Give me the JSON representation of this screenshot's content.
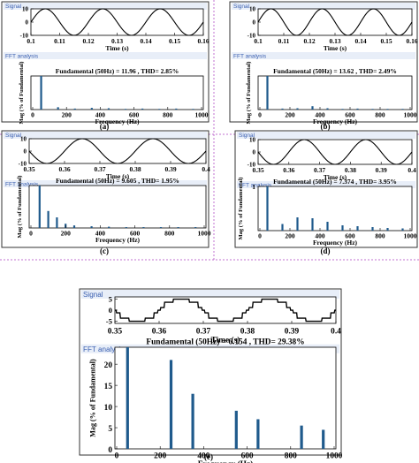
{
  "chart_data": [
    {
      "type": "composite",
      "panel_label": "(a)",
      "signal": {
        "title": "Signal",
        "xlabel": "Time (s)",
        "xlim": [
          0.1,
          0.16
        ],
        "ylim": [
          -10,
          10
        ],
        "yticks": [
          "10",
          "0",
          "-10"
        ],
        "xticks": [
          "0.1",
          "0.11",
          "0.12",
          "0.13",
          "0.14",
          "0.15",
          "0.16"
        ],
        "amplitude": 10,
        "frequency_hz": 50,
        "wave": "sine"
      },
      "fft": {
        "title": "FFT analysis",
        "heading": "Fundamental (50Hz) = 11.96 , THD= 2.85%",
        "xlabel": "Frequency (Hz)",
        "ylabel": "Mag (% of Fundamental)",
        "xticks": [
          "0",
          "200",
          "400",
          "600",
          "800",
          "1000"
        ],
        "yticks": [],
        "xlim": [
          0,
          1000
        ],
        "ylim": [
          0,
          100
        ],
        "x": [
          50,
          150,
          250,
          350,
          450,
          550,
          650,
          750,
          850,
          950
        ],
        "values": [
          100,
          7,
          3,
          5,
          4,
          2,
          3,
          2,
          3,
          2
        ]
      }
    },
    {
      "type": "composite",
      "panel_label": "(b)",
      "signal": {
        "title": "Signal",
        "xlabel": "Time (s)",
        "xlim": [
          0.1,
          0.16
        ],
        "ylim": [
          -10,
          10
        ],
        "yticks": [
          "10",
          "0",
          "-10"
        ],
        "xticks": [
          "0.1",
          "0.11",
          "0.12",
          "0.13",
          "0.14",
          "0.15",
          "0.16"
        ],
        "amplitude": 10,
        "frequency_hz": 50,
        "wave": "sine"
      },
      "fft": {
        "title": "FFT analysis",
        "heading": "Fundamental (50Hz) = 13.62 , THD= 2.49%",
        "xlabel": "Frequency (Hz)",
        "ylabel": "Mag (% of Fundamental)",
        "xticks": [
          "0",
          "200",
          "400",
          "600",
          "800",
          "1000"
        ],
        "yticks": [],
        "xlim": [
          0,
          1000
        ],
        "ylim": [
          0,
          100
        ],
        "x": [
          50,
          150,
          250,
          350,
          450,
          550,
          650,
          750,
          850,
          950
        ],
        "values": [
          100,
          3,
          4,
          10,
          4,
          2,
          3,
          2,
          2,
          2
        ]
      }
    },
    {
      "type": "composite",
      "panel_label": "(c)",
      "signal": {
        "title": "Signal",
        "xlabel": "Time (s)",
        "xlim": [
          0.35,
          0.4
        ],
        "ylim": [
          -10,
          10
        ],
        "yticks": [
          "10",
          "0",
          "-10"
        ],
        "xticks": [
          "0.35",
          "0.36",
          "0.37",
          "0.38",
          "0.39",
          "0.4"
        ],
        "amplitude": 10,
        "frequency_hz": 50,
        "wave": "sine"
      },
      "fft": {
        "title": "FFT analysis",
        "heading": "Fundamental (50Hz) = 9.605 , THD= 1.95%",
        "xlabel": "Frequency (Hz)",
        "ylabel": "Mag (% of Fundamental)",
        "xticks": [
          "0",
          "200",
          "400",
          "600",
          "800",
          "1000"
        ],
        "yticks": [],
        "xlim": [
          0,
          1000
        ],
        "ylim": [
          0,
          100
        ],
        "x": [
          50,
          100,
          150,
          200,
          250,
          350,
          450,
          550,
          650,
          750,
          850,
          950
        ],
        "values": [
          100,
          40,
          25,
          10,
          6,
          4,
          3,
          2,
          2,
          2,
          2,
          2
        ]
      }
    },
    {
      "type": "composite",
      "panel_label": "(d)",
      "signal": {
        "title": "Signal",
        "xlabel": "Time (s)",
        "xlim": [
          0.35,
          0.4
        ],
        "ylim": [
          -10,
          10
        ],
        "yticks": [
          "10",
          "0",
          "-10"
        ],
        "xticks": [
          "0.35",
          "0.36",
          "0.37",
          "0.38",
          "0.39",
          "0.4"
        ],
        "amplitude": 10,
        "frequency_hz": 50,
        "wave": "sine"
      },
      "fft": {
        "title": "FFT analysis",
        "heading": "Fundamental (50Hz) = 7.374 , THD= 3.95%",
        "xlabel": "Frequency (Hz)",
        "ylabel": "Mag (% of Fundamental)",
        "xticks": [
          "0",
          "200",
          "400",
          "600",
          "800",
          "1000"
        ],
        "yticks": [
          "1"
        ],
        "xlim": [
          0,
          1000
        ],
        "ylim": [
          0,
          1
        ],
        "x": [
          50,
          150,
          250,
          350,
          450,
          550,
          650,
          750,
          850,
          950
        ],
        "values": [
          1.0,
          0.15,
          0.3,
          0.28,
          0.2,
          0.12,
          0.1,
          0.08,
          0.06,
          0.05
        ]
      }
    },
    {
      "type": "composite",
      "panel_label": "(e)",
      "signal": {
        "title": "Signal",
        "xlabel": "Time (s)",
        "xlim": [
          0.35,
          0.4
        ],
        "ylim": [
          -6,
          6
        ],
        "yticks": [
          "5",
          "0",
          "-5"
        ],
        "xticks": [
          "0.35",
          "0.36",
          "0.37",
          "0.38",
          "0.39",
          "0.4"
        ],
        "amplitude": 5,
        "frequency_hz": 50,
        "wave": "stepped"
      },
      "fft": {
        "title": "FFT analysis",
        "heading": "Fundamental (50Hz) = 6.154 , THD= 29.38%",
        "xlabel": "Frequency (Hz)",
        "ylabel": "Mag (% of Fundamental)",
        "xticks": [
          "0",
          "200",
          "400",
          "600",
          "800",
          "1000"
        ],
        "yticks": [
          "0",
          "5",
          "10",
          "15",
          "20"
        ],
        "xlim": [
          0,
          1000
        ],
        "ylim": [
          0,
          24
        ],
        "x": [
          50,
          250,
          350,
          550,
          650,
          850,
          950
        ],
        "values": [
          24,
          21,
          13,
          9,
          7,
          5.5,
          4.5
        ]
      }
    }
  ]
}
